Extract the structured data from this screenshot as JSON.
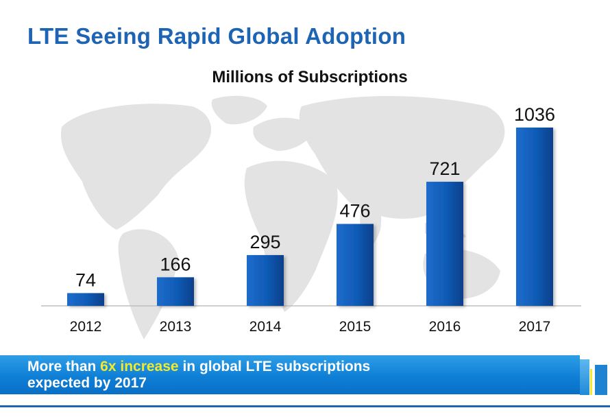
{
  "slide": {
    "title": "LTE Seeing Rapid Global Adoption"
  },
  "chart_data": {
    "type": "bar",
    "title": "Millions of Subscriptions",
    "categories": [
      "2012",
      "2013",
      "2014",
      "2015",
      "2016",
      "2017"
    ],
    "values": [
      74,
      166,
      295,
      476,
      721,
      1036
    ],
    "xlabel": "",
    "ylabel": "",
    "ylim": [
      0,
      1036
    ],
    "grid": false,
    "legend": "none"
  },
  "banner": {
    "prefix": "More than ",
    "highlight": "6x increase",
    "suffix": " in global LTE subscriptions",
    "line2": "expected by 2017"
  },
  "colors": {
    "title": "#1e64b4",
    "bar_top": "#2a7fd4",
    "bar_bottom": "#0d4ea3",
    "highlight": "#f2ea2a",
    "map": "#e3e3e3"
  },
  "icons": {
    "background": "world-map-icon"
  }
}
